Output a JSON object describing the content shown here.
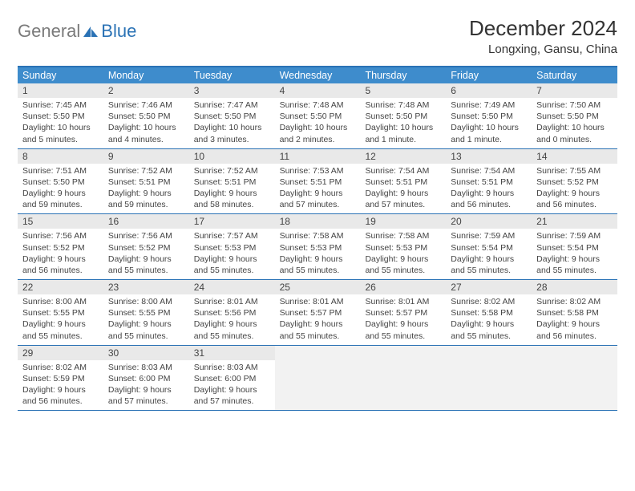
{
  "brand": {
    "text_gray": "General",
    "text_blue": "Blue"
  },
  "title": "December 2024",
  "location": "Longxing, Gansu, China",
  "colors": {
    "header_bar": "#3e8ccc",
    "border": "#2a72b5",
    "daynum_bg": "#e9e9e9",
    "blank_bg": "#f2f2f2",
    "text": "#444444",
    "logo_gray": "#7a7a7a",
    "logo_blue": "#2a72b5"
  },
  "day_headers": [
    "Sunday",
    "Monday",
    "Tuesday",
    "Wednesday",
    "Thursday",
    "Friday",
    "Saturday"
  ],
  "weeks": [
    [
      {
        "n": "1",
        "sunrise": "7:45 AM",
        "sunset": "5:50 PM",
        "day": "10 hours and 5 minutes."
      },
      {
        "n": "2",
        "sunrise": "7:46 AM",
        "sunset": "5:50 PM",
        "day": "10 hours and 4 minutes."
      },
      {
        "n": "3",
        "sunrise": "7:47 AM",
        "sunset": "5:50 PM",
        "day": "10 hours and 3 minutes."
      },
      {
        "n": "4",
        "sunrise": "7:48 AM",
        "sunset": "5:50 PM",
        "day": "10 hours and 2 minutes."
      },
      {
        "n": "5",
        "sunrise": "7:48 AM",
        "sunset": "5:50 PM",
        "day": "10 hours and 1 minute."
      },
      {
        "n": "6",
        "sunrise": "7:49 AM",
        "sunset": "5:50 PM",
        "day": "10 hours and 1 minute."
      },
      {
        "n": "7",
        "sunrise": "7:50 AM",
        "sunset": "5:50 PM",
        "day": "10 hours and 0 minutes."
      }
    ],
    [
      {
        "n": "8",
        "sunrise": "7:51 AM",
        "sunset": "5:50 PM",
        "day": "9 hours and 59 minutes."
      },
      {
        "n": "9",
        "sunrise": "7:52 AM",
        "sunset": "5:51 PM",
        "day": "9 hours and 59 minutes."
      },
      {
        "n": "10",
        "sunrise": "7:52 AM",
        "sunset": "5:51 PM",
        "day": "9 hours and 58 minutes."
      },
      {
        "n": "11",
        "sunrise": "7:53 AM",
        "sunset": "5:51 PM",
        "day": "9 hours and 57 minutes."
      },
      {
        "n": "12",
        "sunrise": "7:54 AM",
        "sunset": "5:51 PM",
        "day": "9 hours and 57 minutes."
      },
      {
        "n": "13",
        "sunrise": "7:54 AM",
        "sunset": "5:51 PM",
        "day": "9 hours and 56 minutes."
      },
      {
        "n": "14",
        "sunrise": "7:55 AM",
        "sunset": "5:52 PM",
        "day": "9 hours and 56 minutes."
      }
    ],
    [
      {
        "n": "15",
        "sunrise": "7:56 AM",
        "sunset": "5:52 PM",
        "day": "9 hours and 56 minutes."
      },
      {
        "n": "16",
        "sunrise": "7:56 AM",
        "sunset": "5:52 PM",
        "day": "9 hours and 55 minutes."
      },
      {
        "n": "17",
        "sunrise": "7:57 AM",
        "sunset": "5:53 PM",
        "day": "9 hours and 55 minutes."
      },
      {
        "n": "18",
        "sunrise": "7:58 AM",
        "sunset": "5:53 PM",
        "day": "9 hours and 55 minutes."
      },
      {
        "n": "19",
        "sunrise": "7:58 AM",
        "sunset": "5:53 PM",
        "day": "9 hours and 55 minutes."
      },
      {
        "n": "20",
        "sunrise": "7:59 AM",
        "sunset": "5:54 PM",
        "day": "9 hours and 55 minutes."
      },
      {
        "n": "21",
        "sunrise": "7:59 AM",
        "sunset": "5:54 PM",
        "day": "9 hours and 55 minutes."
      }
    ],
    [
      {
        "n": "22",
        "sunrise": "8:00 AM",
        "sunset": "5:55 PM",
        "day": "9 hours and 55 minutes."
      },
      {
        "n": "23",
        "sunrise": "8:00 AM",
        "sunset": "5:55 PM",
        "day": "9 hours and 55 minutes."
      },
      {
        "n": "24",
        "sunrise": "8:01 AM",
        "sunset": "5:56 PM",
        "day": "9 hours and 55 minutes."
      },
      {
        "n": "25",
        "sunrise": "8:01 AM",
        "sunset": "5:57 PM",
        "day": "9 hours and 55 minutes."
      },
      {
        "n": "26",
        "sunrise": "8:01 AM",
        "sunset": "5:57 PM",
        "day": "9 hours and 55 minutes."
      },
      {
        "n": "27",
        "sunrise": "8:02 AM",
        "sunset": "5:58 PM",
        "day": "9 hours and 55 minutes."
      },
      {
        "n": "28",
        "sunrise": "8:02 AM",
        "sunset": "5:58 PM",
        "day": "9 hours and 56 minutes."
      }
    ],
    [
      {
        "n": "29",
        "sunrise": "8:02 AM",
        "sunset": "5:59 PM",
        "day": "9 hours and 56 minutes."
      },
      {
        "n": "30",
        "sunrise": "8:03 AM",
        "sunset": "6:00 PM",
        "day": "9 hours and 57 minutes."
      },
      {
        "n": "31",
        "sunrise": "8:03 AM",
        "sunset": "6:00 PM",
        "day": "9 hours and 57 minutes."
      },
      null,
      null,
      null,
      null
    ]
  ],
  "labels": {
    "sunrise": "Sunrise:",
    "sunset": "Sunset:",
    "daylight": "Daylight:"
  }
}
